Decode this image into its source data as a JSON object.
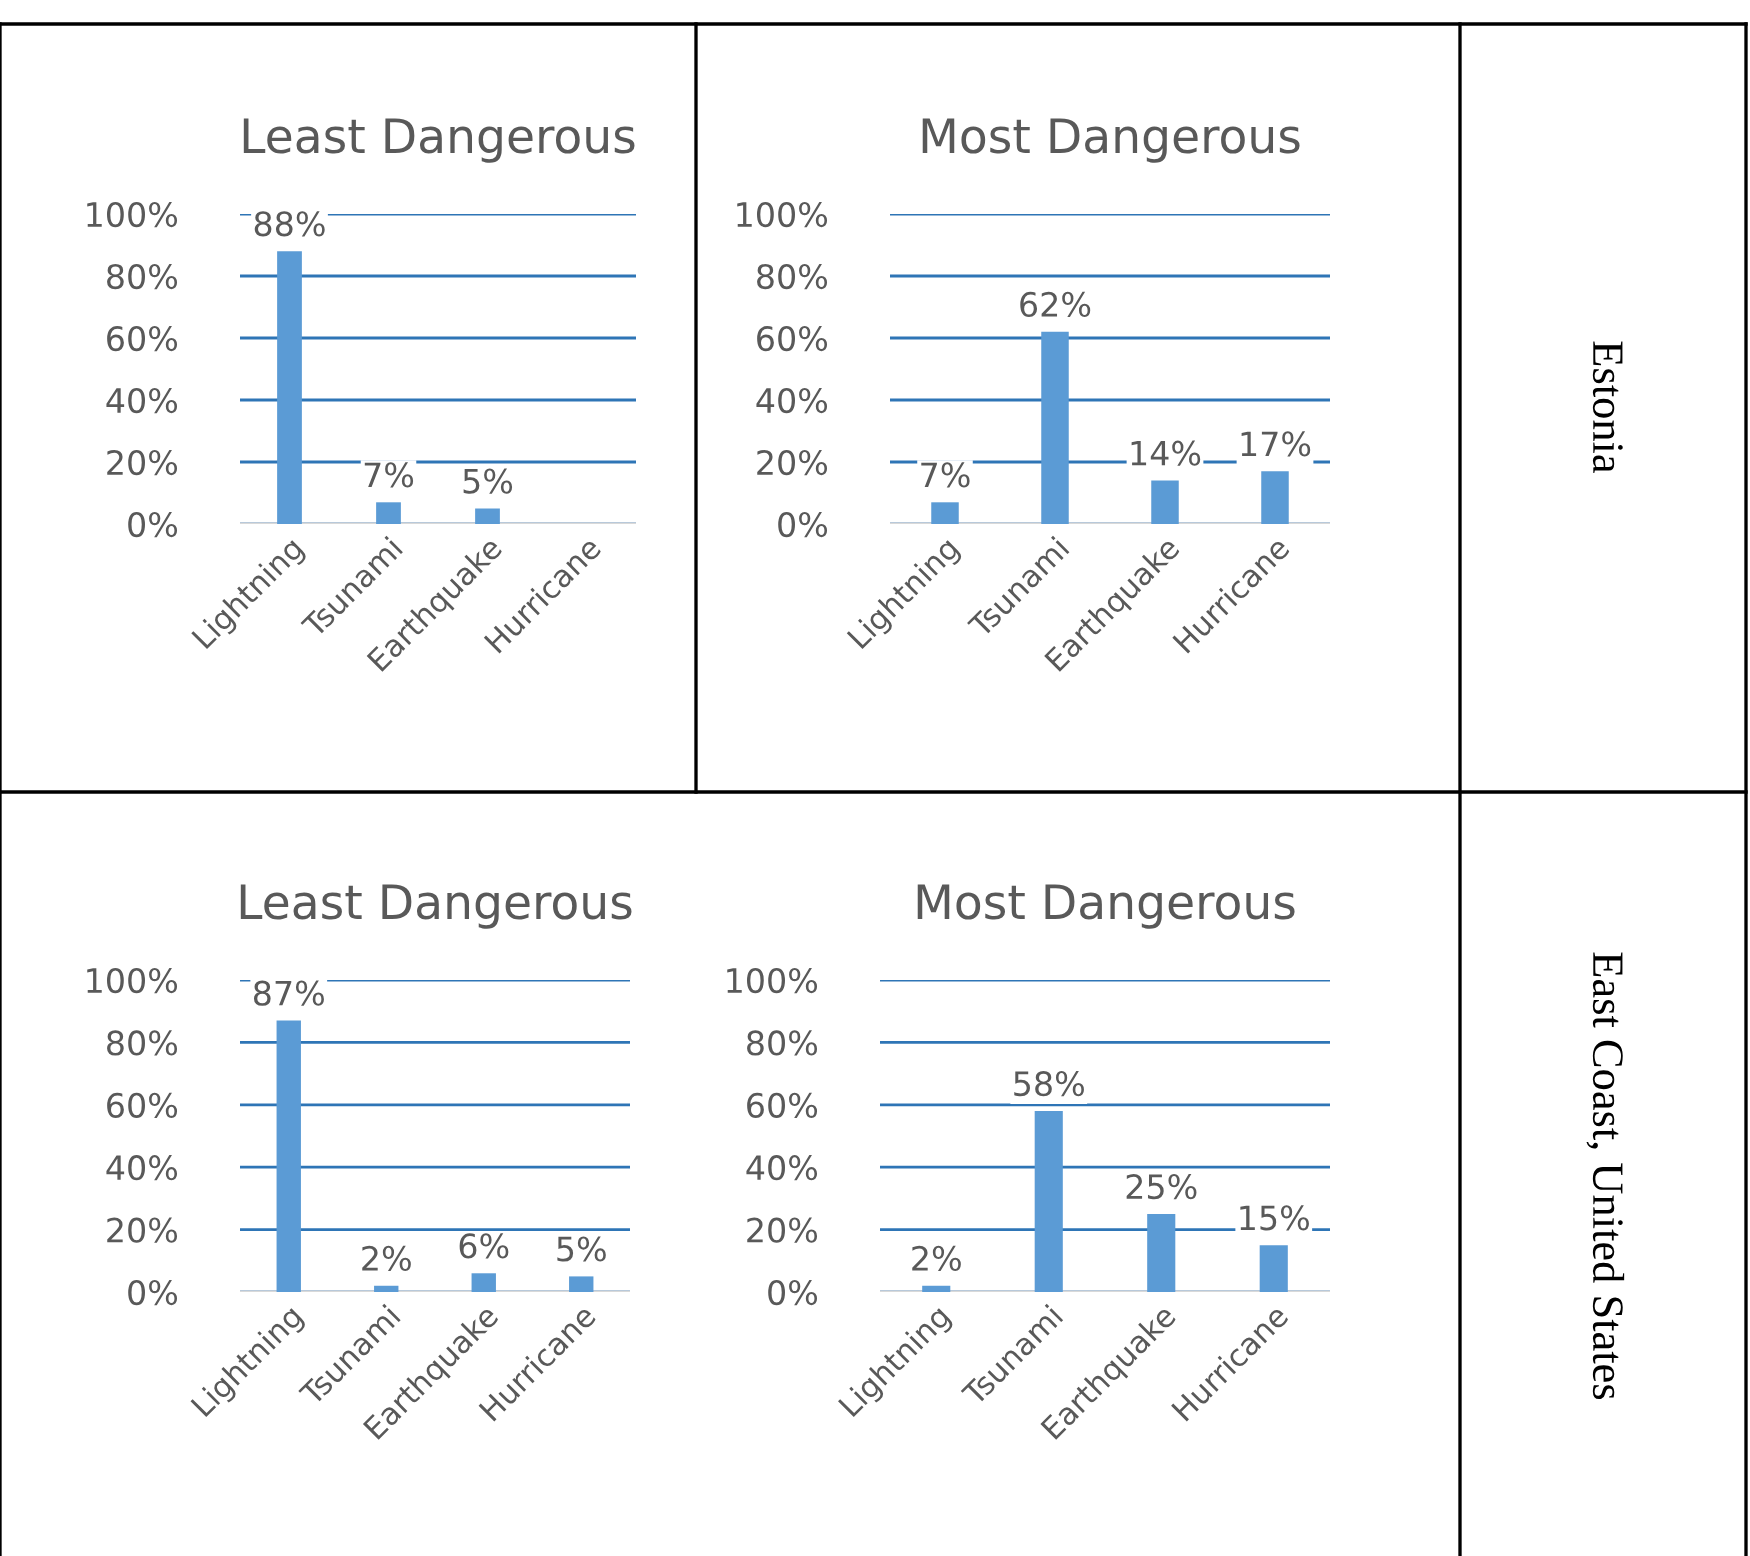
{
  "chart_data": [
    {
      "type": "bar",
      "title": "Least Dangerous",
      "categories": [
        "Lightning",
        "Tsunami",
        "Earthquake",
        "Hurricane"
      ],
      "values": [
        88,
        7,
        5,
        0
      ],
      "value_labels": [
        "88%",
        "7%",
        "5%",
        null
      ],
      "color": "#5b9bd5",
      "ylim": [
        0,
        100
      ],
      "yticks": [
        {
          "value": 0,
          "label": "0%"
        },
        {
          "value": 20,
          "label": "20%"
        },
        {
          "value": 40,
          "label": "40%"
        },
        {
          "value": 60,
          "label": "60%"
        },
        {
          "value": 80,
          "label": "80%"
        },
        {
          "value": 100,
          "label": "100%"
        }
      ],
      "grid": "y"
    },
    {
      "type": "bar",
      "title": "Most Dangerous",
      "categories": [
        "Lightning",
        "Tsunami",
        "Earthquake",
        "Hurricane"
      ],
      "values": [
        7,
        62,
        14,
        17
      ],
      "value_labels": [
        "7%",
        "62%",
        "14%",
        "17%"
      ],
      "color": "#5b9bd5",
      "ylim": [
        0,
        100
      ],
      "yticks": [
        {
          "value": 0,
          "label": "0%"
        },
        {
          "value": 20,
          "label": "20%"
        },
        {
          "value": 40,
          "label": "40%"
        },
        {
          "value": 60,
          "label": "60%"
        },
        {
          "value": 80,
          "label": "80%"
        },
        {
          "value": 100,
          "label": "100%"
        }
      ],
      "grid": "y",
      "annotations": [
        "Estonia"
      ]
    },
    {
      "type": "bar",
      "title": "Least Dangerous",
      "categories": [
        "Lightning",
        "Tsunami",
        "Earthquake",
        "Hurricane"
      ],
      "values": [
        87,
        2,
        6,
        5
      ],
      "value_labels": [
        "87%",
        "2%",
        "6%",
        "5%"
      ],
      "color": "#5b9bd5",
      "ylim": [
        0,
        100
      ],
      "yticks": [
        {
          "value": 0,
          "label": "0%"
        },
        {
          "value": 20,
          "label": "20%"
        },
        {
          "value": 40,
          "label": "40%"
        },
        {
          "value": 60,
          "label": "60%"
        },
        {
          "value": 80,
          "label": "80%"
        },
        {
          "value": 100,
          "label": "100%"
        }
      ],
      "grid": "y"
    },
    {
      "type": "bar",
      "title": "Most Dangerous",
      "categories": [
        "Lightning",
        "Tsunami",
        "Earthquake",
        "Hurricane"
      ],
      "values": [
        2,
        58,
        25,
        15
      ],
      "value_labels": [
        "2%",
        "58%",
        "25%",
        "15%"
      ],
      "color": "#5b9bd5",
      "ylim": [
        0,
        100
      ],
      "yticks": [
        {
          "value": 0,
          "label": "0%"
        },
        {
          "value": 20,
          "label": "20%"
        },
        {
          "value": 40,
          "label": "40%"
        },
        {
          "value": 60,
          "label": "60%"
        },
        {
          "value": 80,
          "label": "80%"
        },
        {
          "value": 100,
          "label": "100%"
        }
      ],
      "grid": "y",
      "annotations": [
        "East Coast, United States"
      ]
    }
  ]
}
